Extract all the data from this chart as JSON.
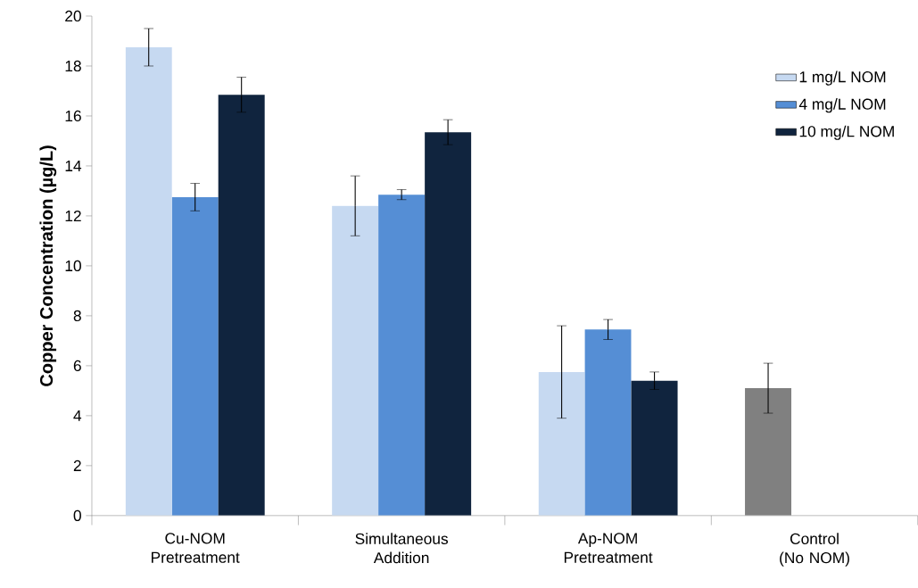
{
  "chart_data": {
    "type": "bar",
    "ylabel": "Copper Concentration (µg/L)",
    "categories": [
      "Cu-NOM Pretreatment",
      "Simultaneous Addition",
      "Ap-NOM Pretreatment",
      "Control (No NOM)"
    ],
    "series": [
      {
        "name": "1 mg/L NOM",
        "color": "#c6d9f1",
        "colors": [
          "#c6d9f1",
          "#c6d9f1",
          "#c6d9f1",
          "#808080"
        ],
        "values": [
          18.75,
          12.4,
          5.75,
          5.1
        ],
        "errors": [
          0.75,
          1.2,
          1.85,
          1.0
        ]
      },
      {
        "name": "4 mg/L NOM",
        "color": "#558ed5",
        "values": [
          12.75,
          12.85,
          7.45,
          null
        ],
        "errors": [
          0.55,
          0.2,
          0.4,
          null
        ]
      },
      {
        "name": "10 mg/L NOM",
        "color": "#10243e",
        "values": [
          16.85,
          15.35,
          5.4,
          null
        ],
        "errors": [
          0.7,
          0.5,
          0.35,
          null
        ]
      }
    ],
    "ylim": [
      0,
      20
    ],
    "yticks": [
      0,
      2,
      4,
      6,
      8,
      10,
      12,
      14,
      16,
      18,
      20
    ],
    "grid": false,
    "legend": "top right"
  }
}
